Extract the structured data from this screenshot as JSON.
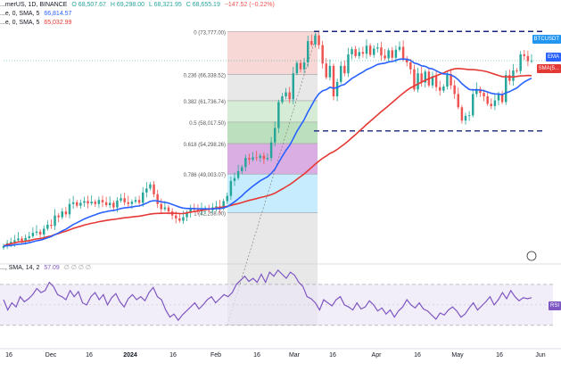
{
  "header": {
    "symbol": "...merUS, 1D, BINANCE",
    "ohlc": [
      "O 68,507.67",
      "H 69,298.00",
      "L 68,321.95",
      "C 68,655.19",
      "−147.52 (−0.22%)"
    ],
    "ema_legend": "...e, 0, SMA, 5",
    "ema_value": "66,814.57",
    "sma_legend": "...e, 0, SMA, 5",
    "sma_value": "65,032.99"
  },
  "price_tags": {
    "last": "BTCUSDT",
    "ema": "EMA",
    "sma": "SMA(5...",
    "rsi": "RSI"
  },
  "rsi_header": {
    "label": "..., SMA, 14, 2",
    "value": "57.09",
    "extra": "∅ ∅ ∅ ∅"
  },
  "colors": {
    "up": "#26a69a",
    "down": "#ef5350",
    "ema": "#2962ff",
    "sma": "#e53935",
    "rsi": "#7e57c2",
    "fib_band_0": "#f6c9c9",
    "fib_band_1": "#e0e0e0",
    "fib_band_2": "#c8e6c9",
    "fib_band_3": "#a5d6a7",
    "fib_band_4": "#ce93d8",
    "fib_band_5": "#b3e5fc",
    "fib_band_6": "#e0e0e0",
    "fib_band_7": "#c5cae9",
    "support_line": "#1a237e"
  },
  "chart_data": {
    "type": "candlestick",
    "title": "BTCUSDT 1D BINANCE",
    "date_axis_labels": [
      "16",
      "Dec",
      "16",
      "2024",
      "16",
      "Feb",
      "16",
      "Mar",
      "16",
      "Apr",
      "16",
      "May",
      "16",
      "Jun"
    ],
    "y_range": [
      34000,
      78000
    ],
    "fib_levels": [
      {
        "ratio": "0",
        "price": 73777.0,
        "label": "0 (73,777.00)"
      },
      {
        "ratio": "0.236",
        "price": 66338.52,
        "label": "0.236 (66,338.52)"
      },
      {
        "ratio": "0.382",
        "price": 61736.74,
        "label": "0.382 (61,736.74)"
      },
      {
        "ratio": "0.5",
        "price": 58017.5,
        "label": "0.5 (58,017.50)"
      },
      {
        "ratio": "0.618",
        "price": 54298.26,
        "label": "0.618 (54,298.26)"
      },
      {
        "ratio": "0.786",
        "price": 49003.07,
        "label": "0.786 (49,003.07)"
      },
      {
        "ratio": "1",
        "price": 42258.0,
        "label": "1 (42,258.00)"
      },
      {
        "ratio": "1.618",
        "price": 22780.0,
        "label": ""
      }
    ],
    "range_top": 73777,
    "range_bottom": 56500,
    "close_series": [
      36500,
      37000,
      37200,
      37500,
      37800,
      37400,
      37900,
      38200,
      38800,
      39000,
      38500,
      39500,
      40200,
      40000,
      41800,
      41500,
      42500,
      42000,
      43800,
      44100,
      43500,
      44000,
      44300,
      43900,
      44200,
      43800,
      44500,
      44100,
      43600,
      44000,
      43200,
      44400,
      44800,
      44100,
      43800,
      44200,
      44500,
      44000,
      45800,
      46500,
      47200,
      45500,
      43800,
      42900,
      43200,
      42500,
      41800,
      41300,
      40900,
      41500,
      42300,
      43100,
      42800,
      42500,
      42900,
      43100,
      42700,
      43200,
      43400,
      43000,
      44300,
      45200,
      47800,
      48300,
      49500,
      50200,
      51800,
      51500,
      51900,
      51800,
      52200,
      51600,
      51800,
      54500,
      57000,
      61500,
      62500,
      63200,
      62000,
      66500,
      68300,
      67200,
      68400,
      72100,
      71500,
      73100,
      71400,
      68200,
      65800,
      67800,
      62500,
      65000,
      67800,
      66500,
      69800,
      70700,
      69500,
      70200,
      69900,
      71300,
      69700,
      70800,
      71000,
      69600,
      69100,
      70500,
      69200,
      70600,
      71100,
      69100,
      68400,
      67200,
      63700,
      66500,
      64900,
      66800,
      64400,
      66000,
      64100,
      63500,
      64200,
      66400,
      64400,
      62900,
      60600,
      58300,
      59100,
      59200,
      62900,
      63800,
      63100,
      62500,
      61200,
      60800,
      61800,
      62900,
      61500,
      66200,
      65200,
      67000,
      66900,
      69800,
      69500,
      68600,
      68700
    ],
    "ema_series_label": "EMA 20",
    "sma_series_label": "SMA 50",
    "rsi": {
      "name": "RSI 14",
      "value": 57.09,
      "band": [
        30,
        70
      ],
      "series": [
        55,
        45,
        52,
        48,
        58,
        53,
        56,
        60,
        66,
        62,
        64,
        72,
        68,
        60,
        58,
        55,
        64,
        58,
        63,
        52,
        50,
        58,
        62,
        55,
        60,
        50,
        57,
        61,
        53,
        48,
        56,
        60,
        55,
        58,
        54,
        62,
        67,
        58,
        55,
        45,
        38,
        41,
        35,
        40,
        44,
        48,
        52,
        46,
        50,
        55,
        58,
        52,
        56,
        60,
        58,
        62,
        70,
        74,
        78,
        73,
        76,
        72,
        80,
        72,
        82,
        78,
        84,
        80,
        76,
        82,
        79,
        72,
        68,
        58,
        56,
        52,
        45,
        55,
        52,
        49,
        55,
        58,
        50,
        48,
        45,
        52,
        46,
        48,
        54,
        50,
        44,
        47,
        41,
        45,
        38,
        44,
        48,
        55,
        50,
        47,
        52,
        46,
        44,
        40,
        36,
        42,
        40,
        45,
        48,
        44,
        38,
        41,
        47,
        52,
        45,
        49,
        53,
        58,
        50,
        55,
        62,
        56,
        64,
        58,
        54,
        57,
        56,
        57
      ]
    }
  }
}
